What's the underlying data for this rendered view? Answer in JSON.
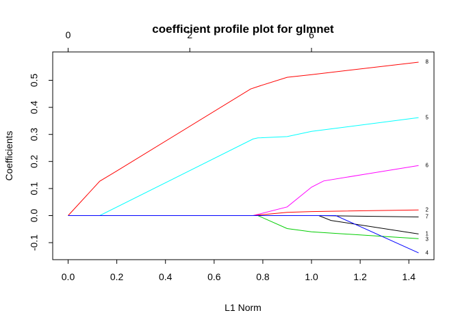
{
  "chart_data": {
    "type": "line",
    "title": "coefficient profile plot for glmnet",
    "xlabel": "L1 Norm",
    "ylabel": "Coefficients",
    "xlim": [
      0,
      1.44
    ],
    "ylim": [
      -0.14,
      0.57
    ],
    "x_ticks": [
      "0.0",
      "0.2",
      "0.4",
      "0.6",
      "0.8",
      "1.0",
      "1.2",
      "1.4"
    ],
    "y_ticks": [
      "-0.1",
      "0.0",
      "0.1",
      "0.2",
      "0.3",
      "0.4",
      "0.5"
    ],
    "top_axis_ticks": [
      "0",
      "2",
      "6"
    ],
    "top_axis_positions": [
      0,
      0.5,
      1.0
    ],
    "grid": false,
    "series": [
      {
        "name": "8",
        "color": "#ff0000",
        "x": [
          0,
          0.13,
          0.2,
          0.75,
          0.78,
          0.9,
          1.0,
          1.44
        ],
        "y": [
          0,
          0.127,
          0.165,
          0.468,
          0.477,
          0.511,
          0.521,
          0.567
        ]
      },
      {
        "name": "5",
        "color": "#00ffff",
        "x": [
          0,
          0.13,
          0.76,
          0.78,
          0.9,
          1.0,
          1.44
        ],
        "y": [
          0,
          0,
          0.283,
          0.287,
          0.292,
          0.311,
          0.362
        ]
      },
      {
        "name": "6",
        "color": "#ff00ff",
        "x": [
          0,
          0.76,
          0.9,
          1.0,
          1.05,
          1.44
        ],
        "y": [
          0,
          0,
          0.032,
          0.105,
          0.128,
          0.185
        ]
      },
      {
        "name": "2",
        "color": "#ff0000",
        "x": [
          0,
          0.76,
          0.9,
          1.0,
          1.44
        ],
        "y": [
          0,
          0,
          0.012,
          0.015,
          0.021
        ]
      },
      {
        "name": "7",
        "color": "#000000",
        "x": [
          0,
          1.03,
          1.44
        ],
        "y": [
          0,
          0,
          -0.005
        ]
      },
      {
        "name": "1",
        "color": "#000000",
        "x": [
          0,
          1.03,
          1.08,
          1.44
        ],
        "y": [
          0,
          0,
          -0.018,
          -0.068
        ]
      },
      {
        "name": "3",
        "color": "#00cd00",
        "x": [
          0,
          0.78,
          0.9,
          1.0,
          1.44
        ],
        "y": [
          0,
          0,
          -0.048,
          -0.06,
          -0.085
        ]
      },
      {
        "name": "4",
        "color": "#0000ff",
        "x": [
          0,
          1.1,
          1.44
        ],
        "y": [
          0,
          0,
          -0.138
        ]
      }
    ]
  }
}
